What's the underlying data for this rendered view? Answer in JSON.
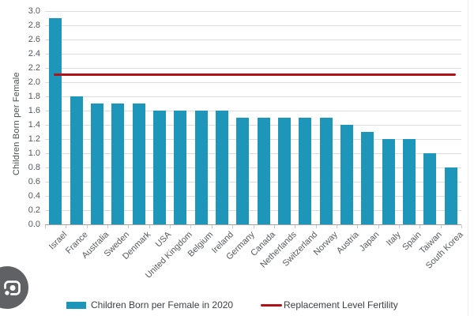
{
  "chart_data": {
    "type": "bar",
    "title": "",
    "categories": [
      "Israel",
      "France",
      "Australia",
      "Sweden",
      "Denmark",
      "USA",
      "United Kingdom",
      "Belgium",
      "Ireland",
      "Germany",
      "Canada",
      "Netherlands",
      "Switzerland",
      "Norway",
      "Austria",
      "Japan",
      "Italy",
      "Spain",
      "Taiwan",
      "South Korea"
    ],
    "series": [
      {
        "name": "Children Born per Female in 2020",
        "type": "bar",
        "color": "#1e96b9",
        "values": [
          2.9,
          1.8,
          1.7,
          1.7,
          1.7,
          1.6,
          1.6,
          1.6,
          1.6,
          1.5,
          1.5,
          1.5,
          1.5,
          1.5,
          1.4,
          1.3,
          1.2,
          1.2,
          1.0,
          0.8
        ]
      },
      {
        "name": "Replacement Level Fertility",
        "type": "line",
        "color": "#b0121a",
        "value": 2.1
      }
    ],
    "xlabel": "",
    "ylabel": "Children Born per Female",
    "ylim": [
      0.0,
      3.0
    ],
    "ytick_step": 0.2,
    "grid": "horizontal",
    "legend_position": "bottom"
  },
  "y_axis": {
    "title": "Children Born per Female",
    "ticks": [
      "0.0",
      "0.2",
      "0.4",
      "0.6",
      "0.8",
      "1.0",
      "1.2",
      "1.4",
      "1.6",
      "1.8",
      "2.0",
      "2.2",
      "2.4",
      "2.6",
      "2.8",
      "3.0"
    ]
  },
  "legend": {
    "bar_label": "Children Born per Female in 2020",
    "line_label": "Replacement Level Fertility"
  },
  "icons": {
    "lens": "google-lens-icon"
  },
  "colors": {
    "bar": "#1e96b9",
    "reference_line": "#b0121a",
    "gridline": "#dcdcdc",
    "axis": "#9da2a6",
    "text": "#55595c",
    "lens_button": "#5f6164",
    "background": "#ffffff"
  }
}
